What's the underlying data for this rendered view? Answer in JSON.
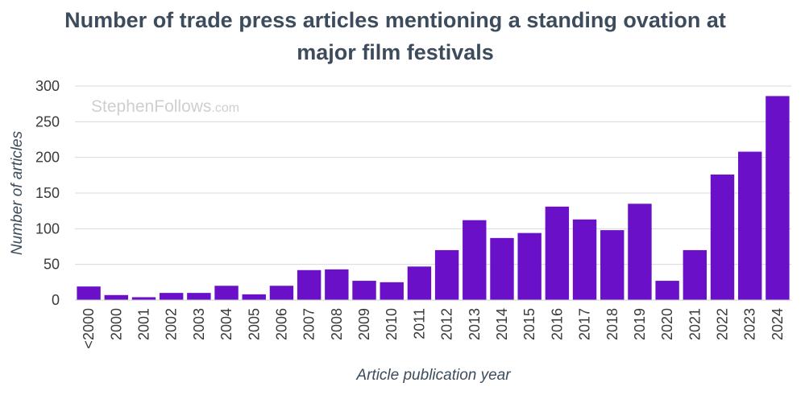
{
  "chart_data": {
    "type": "bar",
    "title_line1": "Number of trade press articles mentioning a standing ovation at",
    "title_line2": "major film festivals",
    "xlabel": "Article publication year",
    "ylabel": "Number of articles",
    "ylim": [
      0,
      300
    ],
    "yticks": [
      0,
      50,
      100,
      150,
      200,
      250,
      300
    ],
    "grid": true,
    "bar_color": "#6a10c8",
    "categories": [
      "<2000",
      "2000",
      "2001",
      "2002",
      "2003",
      "2004",
      "2005",
      "2006",
      "2007",
      "2008",
      "2009",
      "2010",
      "2011",
      "2012",
      "2013",
      "2014",
      "2015",
      "2016",
      "2017",
      "2018",
      "2019",
      "2020",
      "2021",
      "2022",
      "2023",
      "2024"
    ],
    "values": [
      19,
      7,
      4,
      10,
      10,
      20,
      8,
      20,
      42,
      43,
      27,
      25,
      47,
      70,
      112,
      87,
      94,
      131,
      113,
      98,
      135,
      27,
      70,
      176,
      208,
      286
    ]
  },
  "watermark": {
    "main": "StephenFollows",
    "suffix": ".com"
  }
}
